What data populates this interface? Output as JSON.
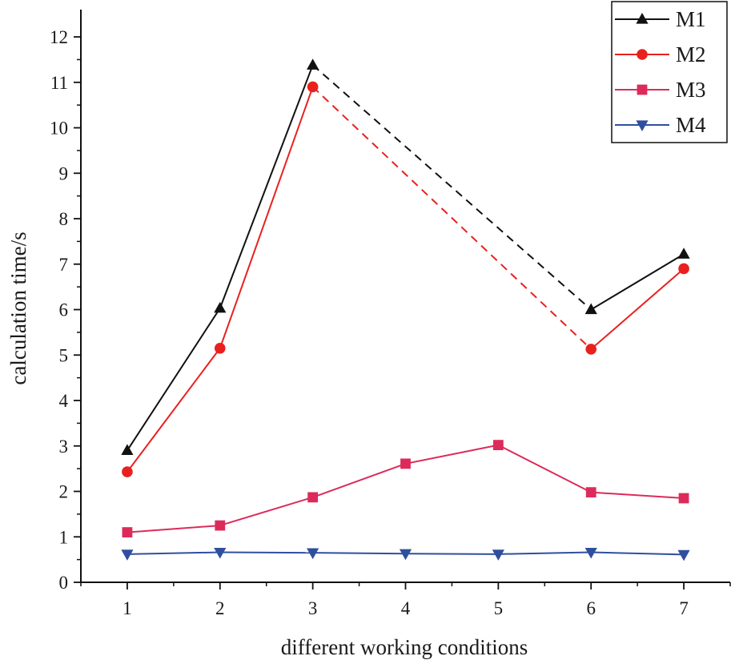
{
  "chart_data": {
    "type": "line",
    "xlabel": "different working conditions",
    "ylabel": "calculation time/s",
    "xlim": [
      0.5,
      7.5
    ],
    "ylim": [
      0,
      12.6
    ],
    "x_ticks": [
      1,
      2,
      3,
      4,
      5,
      6,
      7
    ],
    "y_ticks": [
      0,
      1,
      2,
      3,
      4,
      5,
      6,
      7,
      8,
      9,
      10,
      11,
      12
    ],
    "grid": false,
    "legend_position": "top-right",
    "series": [
      {
        "name": "M1",
        "color": "#111111",
        "marker": "triangle-up",
        "points": [
          [
            1,
            2.9
          ],
          [
            2,
            6.03
          ],
          [
            3,
            11.38
          ],
          [
            6,
            6.0
          ],
          [
            7,
            7.22
          ]
        ],
        "dashed_segment": [
          3,
          6
        ]
      },
      {
        "name": "M2",
        "color": "#e8211f",
        "marker": "circle",
        "points": [
          [
            1,
            2.43
          ],
          [
            2,
            5.15
          ],
          [
            3,
            10.9
          ],
          [
            6,
            5.13
          ],
          [
            7,
            6.9
          ]
        ],
        "dashed_segment": [
          3,
          6
        ]
      },
      {
        "name": "M3",
        "color": "#dc2b5a",
        "marker": "square",
        "points": [
          [
            1,
            1.1
          ],
          [
            2,
            1.25
          ],
          [
            3,
            1.87
          ],
          [
            4,
            2.61
          ],
          [
            5,
            3.02
          ],
          [
            6,
            1.98
          ],
          [
            7,
            1.85
          ]
        ]
      },
      {
        "name": "M4",
        "color": "#2f4f9e",
        "marker": "triangle-down",
        "points": [
          [
            1,
            0.62
          ],
          [
            2,
            0.66
          ],
          [
            3,
            0.65
          ],
          [
            4,
            0.63
          ],
          [
            5,
            0.62
          ],
          [
            6,
            0.66
          ],
          [
            7,
            0.61
          ]
        ]
      }
    ]
  }
}
